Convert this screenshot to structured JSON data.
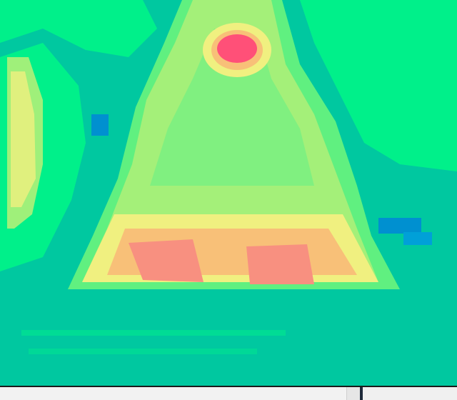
{
  "viewer": {
    "kind": "thermal-heatmap",
    "palette": {
      "cold": "#0090d0",
      "teal": "#00c8a0",
      "green": "#00f08a",
      "lightgreen": "#60f080",
      "yellowgreen": "#b0f078",
      "yellow": "#f0f080",
      "orange": "#f8c078",
      "salmon": "#f89080",
      "hot": "#ff5078"
    }
  },
  "statusbar": {}
}
